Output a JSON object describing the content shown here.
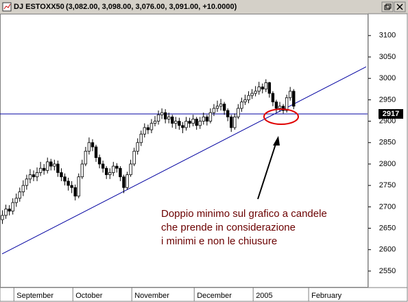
{
  "chart_data": {
    "type": "candlestick",
    "title": "DJ ESTOXX50",
    "title_values": "(3,082.00, 3,098.00, 3,076.00, 3,091.00, +10.0000)",
    "categories": [
      null,
      null,
      null,
      null,
      null,
      null,
      null,
      null,
      null,
      null,
      null,
      null,
      null,
      null,
      null,
      null,
      null,
      null,
      null,
      null,
      null,
      null,
      null,
      null,
      null,
      null,
      null,
      null,
      null,
      null,
      null,
      null,
      null,
      null,
      null,
      null,
      null,
      null,
      null,
      null,
      null,
      null,
      null,
      null,
      null,
      null,
      null,
      null,
      null,
      null,
      null,
      null,
      null,
      null,
      null,
      null,
      null,
      null,
      null,
      null,
      null,
      null,
      null,
      null,
      null,
      null,
      null,
      null,
      null,
      null,
      null,
      null,
      null,
      null,
      null,
      null,
      null,
      null,
      null,
      null,
      null,
      null,
      null,
      null,
      null
    ],
    "open": [
      2670,
      2680,
      2695,
      2690,
      2710,
      2720,
      2735,
      2750,
      2765,
      2775,
      2770,
      2780,
      2790,
      2785,
      2805,
      2795,
      2800,
      2780,
      2770,
      2760,
      2750,
      2745,
      2725,
      2770,
      2800,
      2830,
      2850,
      2840,
      2815,
      2800,
      2790,
      2775,
      2780,
      2795,
      2790,
      2770,
      2745,
      2775,
      2800,
      2830,
      2850,
      2870,
      2885,
      2880,
      2895,
      2900,
      2915,
      2920,
      2905,
      2910,
      2895,
      2900,
      2890,
      2885,
      2900,
      2895,
      2905,
      2890,
      2900,
      2910,
      2900,
      2920,
      2930,
      2935,
      2940,
      2925,
      2910,
      2885,
      2910,
      2930,
      2945,
      2950,
      2960,
      2965,
      2970,
      2980,
      2975,
      2990,
      2965,
      2945,
      2930,
      2935,
      2925,
      2955,
      2970
    ],
    "high": [
      2692,
      2705,
      2704,
      2720,
      2731,
      2745,
      2762,
      2775,
      2788,
      2785,
      2792,
      2805,
      2800,
      2815,
      2812,
      2810,
      2808,
      2790,
      2778,
      2768,
      2760,
      2752,
      2778,
      2810,
      2840,
      2862,
      2858,
      2845,
      2822,
      2808,
      2795,
      2790,
      2805,
      2802,
      2795,
      2775,
      2782,
      2810,
      2838,
      2860,
      2878,
      2895,
      2892,
      2905,
      2912,
      2925,
      2930,
      2928,
      2920,
      2915,
      2910,
      2908,
      2898,
      2910,
      2908,
      2915,
      2910,
      2910,
      2920,
      2915,
      2930,
      2940,
      2948,
      2952,
      2945,
      2930,
      2915,
      2918,
      2940,
      2955,
      2962,
      2970,
      2975,
      2982,
      2992,
      2988,
      2998,
      2992,
      2970,
      2950,
      2945,
      2940,
      2962,
      2980,
      2975
    ],
    "low": [
      2660,
      2672,
      2680,
      2682,
      2700,
      2712,
      2725,
      2740,
      2755,
      2760,
      2760,
      2772,
      2775,
      2778,
      2785,
      2785,
      2770,
      2760,
      2750,
      2738,
      2732,
      2715,
      2720,
      2765,
      2795,
      2822,
      2830,
      2805,
      2790,
      2780,
      2765,
      2765,
      2772,
      2780,
      2760,
      2732,
      2740,
      2770,
      2795,
      2822,
      2842,
      2862,
      2870,
      2872,
      2888,
      2892,
      2905,
      2895,
      2895,
      2885,
      2882,
      2880,
      2872,
      2878,
      2885,
      2888,
      2880,
      2882,
      2892,
      2890,
      2895,
      2912,
      2922,
      2925,
      2915,
      2900,
      2875,
      2880,
      2905,
      2922,
      2938,
      2942,
      2952,
      2958,
      2962,
      2965,
      2968,
      2955,
      2935,
      2920,
      2922,
      2918,
      2920,
      2948,
      2928
    ],
    "close": [
      2680,
      2695,
      2690,
      2710,
      2720,
      2735,
      2750,
      2765,
      2775,
      2770,
      2780,
      2790,
      2785,
      2805,
      2795,
      2800,
      2780,
      2770,
      2760,
      2750,
      2745,
      2725,
      2770,
      2800,
      2830,
      2850,
      2840,
      2815,
      2800,
      2790,
      2775,
      2780,
      2795,
      2790,
      2770,
      2745,
      2775,
      2800,
      2830,
      2850,
      2870,
      2885,
      2880,
      2895,
      2900,
      2915,
      2920,
      2905,
      2910,
      2895,
      2900,
      2890,
      2885,
      2900,
      2895,
      2905,
      2890,
      2900,
      2910,
      2900,
      2920,
      2930,
      2935,
      2940,
      2925,
      2910,
      2885,
      2910,
      2930,
      2945,
      2950,
      2960,
      2965,
      2970,
      2980,
      2975,
      2990,
      2965,
      2945,
      2930,
      2935,
      2925,
      2955,
      2970,
      2935
    ],
    "month_labels": [
      {
        "at": 5,
        "label": "September"
      },
      {
        "at": 22,
        "label": "October"
      },
      {
        "at": 39,
        "label": "November"
      },
      {
        "at": 57,
        "label": "December"
      },
      {
        "at": 74,
        "label": "2005"
      },
      {
        "at": 90,
        "label": "February"
      }
    ],
    "ylim": [
      2513,
      3151
    ],
    "yticks": [
      2550,
      2600,
      2650,
      2700,
      2750,
      2800,
      2850,
      2900,
      2950,
      3000,
      3050,
      3100
    ],
    "hline": {
      "value": 2917,
      "color": "#0000a0"
    },
    "trendline": {
      "from": [
        0,
        2590
      ],
      "to": [
        105,
        3027
      ],
      "color": "#0000a0"
    },
    "annotation": [
      "Doppio minimo sul grafico a candele",
      "che prende in considerazione",
      "i minimi e non le chiusure"
    ],
    "annotation_color": "#6b0000"
  }
}
